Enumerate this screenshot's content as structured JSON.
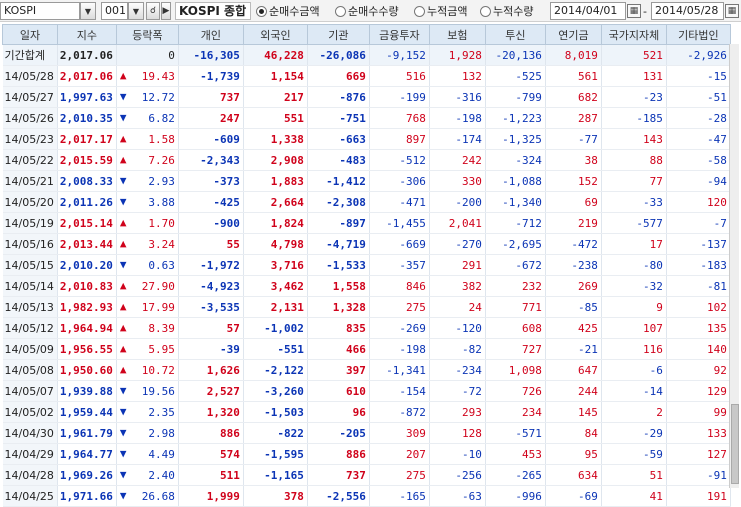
{
  "toolbar": {
    "index_select": "KOSPI",
    "code": "001",
    "market_name": "KOSPI 종합",
    "radios": [
      {
        "label": "순매수금액",
        "checked": true
      },
      {
        "label": "순매수수량",
        "checked": false
      },
      {
        "label": "누적금액",
        "checked": false
      },
      {
        "label": "누적수량",
        "checked": false
      }
    ],
    "date_from": "2014/04/01",
    "date_sep": "-",
    "date_to": "2014/05/28"
  },
  "columns": [
    "일자",
    "지수",
    "등락폭",
    "개인",
    "외국인",
    "기관",
    "금융투자",
    "보험",
    "투신",
    "연기금",
    "국가지자체",
    "기타법인"
  ],
  "summary": {
    "date": "기간합계",
    "index": "2,017.06",
    "change": "0",
    "personal": "-16,305",
    "foreign": "46,228",
    "institution": "-26,086",
    "fin": "-9,152",
    "insurance": "1,928",
    "trust": "-20,136",
    "pension": "8,019",
    "govt": "521",
    "others": "-2,926"
  },
  "rows": [
    {
      "date": "14/05/28",
      "index": "2,017.06",
      "dir": "up",
      "change": "19.43",
      "personal": "-1,739",
      "foreign": "1,154",
      "institution": "669",
      "fin": "516",
      "insurance": "132",
      "trust": "-525",
      "pension": "561",
      "govt": "131",
      "others": "-15"
    },
    {
      "date": "14/05/27",
      "index": "1,997.63",
      "dir": "down",
      "change": "12.72",
      "personal": "737",
      "foreign": "217",
      "institution": "-876",
      "fin": "-199",
      "insurance": "-316",
      "trust": "-799",
      "pension": "682",
      "govt": "-23",
      "others": "-51"
    },
    {
      "date": "14/05/26",
      "index": "2,010.35",
      "dir": "down",
      "change": "6.82",
      "personal": "247",
      "foreign": "551",
      "institution": "-751",
      "fin": "768",
      "insurance": "-198",
      "trust": "-1,223",
      "pension": "287",
      "govt": "-185",
      "others": "-28"
    },
    {
      "date": "14/05/23",
      "index": "2,017.17",
      "dir": "up",
      "change": "1.58",
      "personal": "-609",
      "foreign": "1,338",
      "institution": "-663",
      "fin": "897",
      "insurance": "-174",
      "trust": "-1,325",
      "pension": "-77",
      "govt": "143",
      "others": "-47"
    },
    {
      "date": "14/05/22",
      "index": "2,015.59",
      "dir": "up",
      "change": "7.26",
      "personal": "-2,343",
      "foreign": "2,908",
      "institution": "-483",
      "fin": "-512",
      "insurance": "242",
      "trust": "-324",
      "pension": "38",
      "govt": "88",
      "others": "-58"
    },
    {
      "date": "14/05/21",
      "index": "2,008.33",
      "dir": "down",
      "change": "2.93",
      "personal": "-373",
      "foreign": "1,883",
      "institution": "-1,412",
      "fin": "-306",
      "insurance": "330",
      "trust": "-1,088",
      "pension": "152",
      "govt": "77",
      "others": "-94"
    },
    {
      "date": "14/05/20",
      "index": "2,011.26",
      "dir": "down",
      "change": "3.88",
      "personal": "-425",
      "foreign": "2,664",
      "institution": "-2,308",
      "fin": "-471",
      "insurance": "-200",
      "trust": "-1,340",
      "pension": "69",
      "govt": "-33",
      "others": "120"
    },
    {
      "date": "14/05/19",
      "index": "2,015.14",
      "dir": "up",
      "change": "1.70",
      "personal": "-900",
      "foreign": "1,824",
      "institution": "-897",
      "fin": "-1,455",
      "insurance": "2,041",
      "trust": "-712",
      "pension": "219",
      "govt": "-577",
      "others": "-7"
    },
    {
      "date": "14/05/16",
      "index": "2,013.44",
      "dir": "up",
      "change": "3.24",
      "personal": "55",
      "foreign": "4,798",
      "institution": "-4,719",
      "fin": "-669",
      "insurance": "-270",
      "trust": "-2,695",
      "pension": "-472",
      "govt": "17",
      "others": "-137"
    },
    {
      "date": "14/05/15",
      "index": "2,010.20",
      "dir": "down",
      "change": "0.63",
      "personal": "-1,972",
      "foreign": "3,716",
      "institution": "-1,533",
      "fin": "-357",
      "insurance": "291",
      "trust": "-672",
      "pension": "-238",
      "govt": "-80",
      "others": "-183"
    },
    {
      "date": "14/05/14",
      "index": "2,010.83",
      "dir": "up",
      "change": "27.90",
      "personal": "-4,923",
      "foreign": "3,462",
      "institution": "1,558",
      "fin": "846",
      "insurance": "382",
      "trust": "232",
      "pension": "269",
      "govt": "-32",
      "others": "-81"
    },
    {
      "date": "14/05/13",
      "index": "1,982.93",
      "dir": "up",
      "change": "17.99",
      "personal": "-3,535",
      "foreign": "2,131",
      "institution": "1,328",
      "fin": "275",
      "insurance": "24",
      "trust": "771",
      "pension": "-85",
      "govt": "9",
      "others": "102"
    },
    {
      "date": "14/05/12",
      "index": "1,964.94",
      "dir": "up",
      "change": "8.39",
      "personal": "57",
      "foreign": "-1,002",
      "institution": "835",
      "fin": "-269",
      "insurance": "-120",
      "trust": "608",
      "pension": "425",
      "govt": "107",
      "others": "135"
    },
    {
      "date": "14/05/09",
      "index": "1,956.55",
      "dir": "up",
      "change": "5.95",
      "personal": "-39",
      "foreign": "-551",
      "institution": "466",
      "fin": "-198",
      "insurance": "-82",
      "trust": "727",
      "pension": "-21",
      "govt": "116",
      "others": "140"
    },
    {
      "date": "14/05/08",
      "index": "1,950.60",
      "dir": "up",
      "change": "10.72",
      "personal": "1,626",
      "foreign": "-2,122",
      "institution": "397",
      "fin": "-1,341",
      "insurance": "-234",
      "trust": "1,098",
      "pension": "647",
      "govt": "-6",
      "others": "92"
    },
    {
      "date": "14/05/07",
      "index": "1,939.88",
      "dir": "down",
      "change": "19.56",
      "personal": "2,527",
      "foreign": "-3,260",
      "institution": "610",
      "fin": "-154",
      "insurance": "-72",
      "trust": "726",
      "pension": "244",
      "govt": "-14",
      "others": "129"
    },
    {
      "date": "14/05/02",
      "index": "1,959.44",
      "dir": "down",
      "change": "2.35",
      "personal": "1,320",
      "foreign": "-1,503",
      "institution": "96",
      "fin": "-872",
      "insurance": "293",
      "trust": "234",
      "pension": "145",
      "govt": "2",
      "others": "99"
    },
    {
      "date": "14/04/30",
      "index": "1,961.79",
      "dir": "down",
      "change": "2.98",
      "personal": "886",
      "foreign": "-822",
      "institution": "-205",
      "fin": "309",
      "insurance": "128",
      "trust": "-571",
      "pension": "84",
      "govt": "-29",
      "others": "133"
    },
    {
      "date": "14/04/29",
      "index": "1,964.77",
      "dir": "down",
      "change": "4.49",
      "personal": "574",
      "foreign": "-1,595",
      "institution": "886",
      "fin": "207",
      "insurance": "-10",
      "trust": "453",
      "pension": "95",
      "govt": "-59",
      "others": "127"
    },
    {
      "date": "14/04/28",
      "index": "1,969.26",
      "dir": "down",
      "change": "2.40",
      "personal": "511",
      "foreign": "-1,165",
      "institution": "737",
      "fin": "275",
      "insurance": "-256",
      "trust": "-265",
      "pension": "634",
      "govt": "51",
      "others": "-91"
    },
    {
      "date": "14/04/25",
      "index": "1,971.66",
      "dir": "down",
      "change": "26.68",
      "personal": "1,999",
      "foreign": "378",
      "institution": "-2,556",
      "fin": "-165",
      "insurance": "-63",
      "trust": "-996",
      "pension": "-69",
      "govt": "41",
      "others": "191"
    }
  ],
  "colors": {
    "up": "#d0021b",
    "down": "#0b34b5",
    "header_bg": "#dde9f5"
  }
}
